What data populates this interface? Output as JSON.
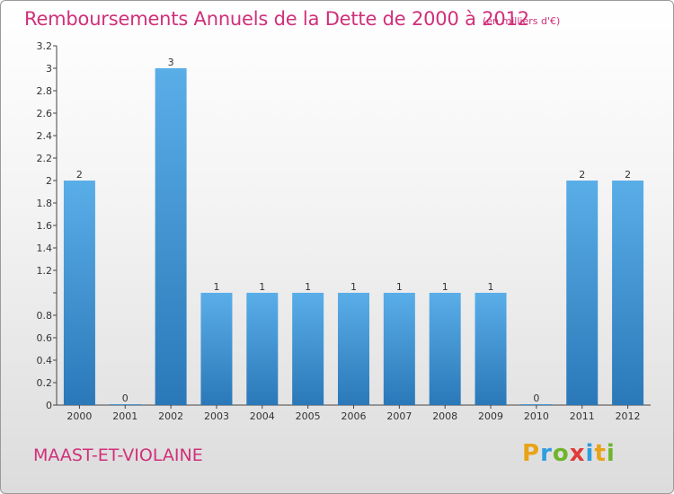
{
  "header": {
    "title": "Remboursements Annuels de la Dette de 2000 à 2012",
    "unit": "(en milliers d'€)"
  },
  "footer": {
    "commune": "MAAST-ET-VIOLAINE",
    "logo_letters": [
      "P",
      "r",
      "o",
      "x",
      "i",
      "t",
      "i"
    ]
  },
  "chart_data": {
    "type": "bar",
    "title": "Remboursements Annuels de la Dette de 2000 à 2012",
    "subtitle": "(en milliers d'€)",
    "categories": [
      "2000",
      "2001",
      "2002",
      "2003",
      "2004",
      "2005",
      "2006",
      "2007",
      "2008",
      "2009",
      "2010",
      "2011",
      "2012"
    ],
    "values": [
      2,
      0,
      3,
      1,
      1,
      1,
      1,
      1,
      1,
      1,
      0,
      2,
      2
    ],
    "data_labels": [
      "2",
      "0",
      "3",
      "1",
      "1",
      "1",
      "1",
      "1",
      "1",
      "1",
      "0",
      "2",
      "2"
    ],
    "y_ticks": [
      0,
      0.2,
      0.4,
      0.6,
      0.8,
      1,
      1.2,
      1.4,
      1.6,
      1.8,
      2,
      2.2,
      2.4,
      2.6,
      2.8,
      3,
      3.2
    ],
    "y_tick_labels": [
      "0",
      "0.2",
      "0.4",
      "0.6",
      "0.8",
      "",
      "1.2",
      "1.4",
      "1.6",
      "1.8",
      "2",
      "2.2",
      "2.4",
      "2.6",
      "2.8",
      "3",
      "3.2"
    ],
    "ylim": [
      0,
      3.2
    ],
    "xlabel": "",
    "ylabel": "",
    "grid": false,
    "colors": {
      "bar_light": "#5aaee8",
      "bar_dark": "#2a78b8",
      "axis": "#444444",
      "title": "#d0307a"
    }
  }
}
